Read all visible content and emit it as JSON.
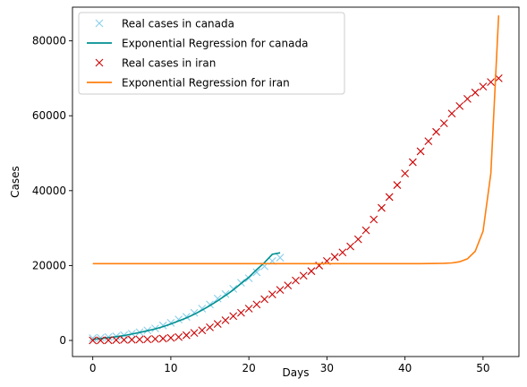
{
  "chart_data": {
    "type": "line",
    "title": "",
    "xlabel": "Days",
    "ylabel": "Cases",
    "xlim": [
      -2.6,
      54.6
    ],
    "ylim": [
      -4300,
      89000
    ],
    "xticks": [
      0,
      10,
      20,
      30,
      40,
      50
    ],
    "yticks": [
      0,
      20000,
      40000,
      60000,
      80000
    ],
    "grid": false,
    "legend_position": "top-left",
    "series": [
      {
        "name": "Real cases in canada",
        "kind": "scatter",
        "marker": "x",
        "color": "#87ceeb",
        "x": [
          0,
          1,
          2,
          3,
          4,
          5,
          6,
          7,
          8,
          9,
          10,
          11,
          12,
          13,
          14,
          15,
          16,
          17,
          18,
          19,
          20,
          21,
          22,
          23,
          24
        ],
        "y": [
          600,
          700,
          900,
          1100,
          1400,
          1800,
          2200,
          2700,
          3200,
          4000,
          4700,
          5600,
          6300,
          7400,
          8500,
          9600,
          11200,
          12400,
          13800,
          15400,
          16600,
          18200,
          19800,
          21200,
          22100
        ]
      },
      {
        "name": "Exponential Regression for canada",
        "kind": "line",
        "color": "#009090",
        "x": [
          0,
          1,
          2,
          3,
          4,
          5,
          6,
          7,
          8,
          9,
          10,
          11,
          12,
          13,
          14,
          15,
          16,
          17,
          18,
          19,
          20,
          21,
          22,
          23,
          24
        ],
        "y": [
          300,
          500,
          750,
          1000,
          1300,
          1700,
          2100,
          2600,
          3100,
          3700,
          4400,
          5200,
          6000,
          7000,
          8100,
          9300,
          10600,
          12000,
          13500,
          15200,
          16900,
          18900,
          20800,
          23000,
          23400
        ]
      },
      {
        "name": "Real cases in iran",
        "kind": "scatter",
        "marker": "x",
        "color": "#cc0000",
        "x": [
          0,
          1,
          2,
          3,
          4,
          5,
          6,
          7,
          8,
          9,
          10,
          11,
          12,
          13,
          14,
          15,
          16,
          17,
          18,
          19,
          20,
          21,
          22,
          23,
          24,
          25,
          26,
          27,
          28,
          29,
          30,
          31,
          32,
          33,
          34,
          35,
          36,
          37,
          38,
          39,
          40,
          41,
          42,
          43,
          44,
          45,
          46,
          47,
          48,
          49,
          50,
          51,
          52
        ],
        "y": [
          0,
          0,
          50,
          100,
          150,
          200,
          250,
          300,
          400,
          500,
          700,
          900,
          1400,
          2000,
          2700,
          3500,
          4400,
          5400,
          6500,
          7400,
          8500,
          9600,
          11000,
          12300,
          13500,
          14700,
          16000,
          17300,
          18500,
          20000,
          21200,
          22300,
          23500,
          25100,
          27000,
          29400,
          32300,
          35400,
          38300,
          41500,
          44600,
          47600,
          50500,
          53200,
          55700,
          58000,
          60600,
          62600,
          64500,
          66200,
          67800,
          69000,
          70000
        ]
      },
      {
        "name": "Exponential Regression for iran",
        "kind": "line",
        "color": "#ff7f0e",
        "x": [
          0,
          5,
          10,
          15,
          20,
          25,
          30,
          35,
          40,
          42,
          44,
          45,
          46,
          47,
          48,
          49,
          50,
          51,
          52
        ],
        "y": [
          20500,
          20500,
          20500,
          20500,
          20500,
          20500,
          20500,
          20500,
          20500,
          20520,
          20550,
          20600,
          20700,
          21000,
          21800,
          23800,
          29200,
          44600,
          86800
        ]
      }
    ]
  }
}
